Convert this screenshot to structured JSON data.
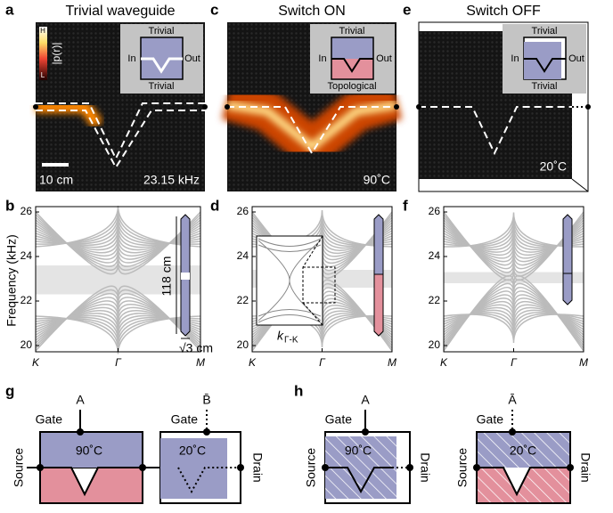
{
  "figure": {
    "panel_a": {
      "letter": "a",
      "title": "Trivial waveguide",
      "colorbar_high": "H",
      "colorbar_low": "L",
      "colorbar_label": "|p(r)|",
      "inset_top": "Trivial",
      "inset_bottom": "Trivial",
      "inset_in": "In",
      "inset_out": "Out",
      "scale_bar": "10 cm",
      "frequency": "23.15 kHz"
    },
    "panel_c": {
      "letter": "c",
      "title": "Switch ON",
      "inset_top": "Trivial",
      "inset_bottom": "Topological",
      "inset_in": "In",
      "inset_out": "Out",
      "temperature": "90˚C"
    },
    "panel_e": {
      "letter": "e",
      "title": "Switch OFF",
      "inset_top": "Trivial",
      "inset_bottom": "Trivial",
      "inset_in": "In",
      "inset_out": "Out",
      "temperature": "20˚C"
    },
    "panel_b": {
      "letter": "b",
      "height_label": "118 cm",
      "width_label": "√3 cm"
    },
    "panel_d": {
      "letter": "d",
      "inset_xlabel": "k",
      "inset_xlabel_sub": "Γ-K"
    },
    "panel_f": {
      "letter": "f"
    },
    "band_axes": {
      "y_label": "Frequency (kHz)",
      "yticks": [
        26,
        24,
        22,
        20
      ],
      "xticks": [
        "K",
        "Γ",
        "M"
      ]
    },
    "panel_g": {
      "letter": "g",
      "left": {
        "gate": "Gate",
        "signal": "A",
        "temperature": "90˚C",
        "source": "Source"
      },
      "right": {
        "gate": "Gate",
        "signal": "B̄",
        "temperature": "20˚C",
        "drain": "Drain"
      }
    },
    "panel_h": {
      "letter": "h",
      "left": {
        "gate": "Gate",
        "signal": "A",
        "temperature": "90˚C",
        "source": "Source",
        "drain": "Drain"
      },
      "right": {
        "gate": "Gate",
        "signal": "Ā",
        "temperature": "20˚C",
        "source": "Source",
        "drain": "Drain"
      }
    }
  }
}
